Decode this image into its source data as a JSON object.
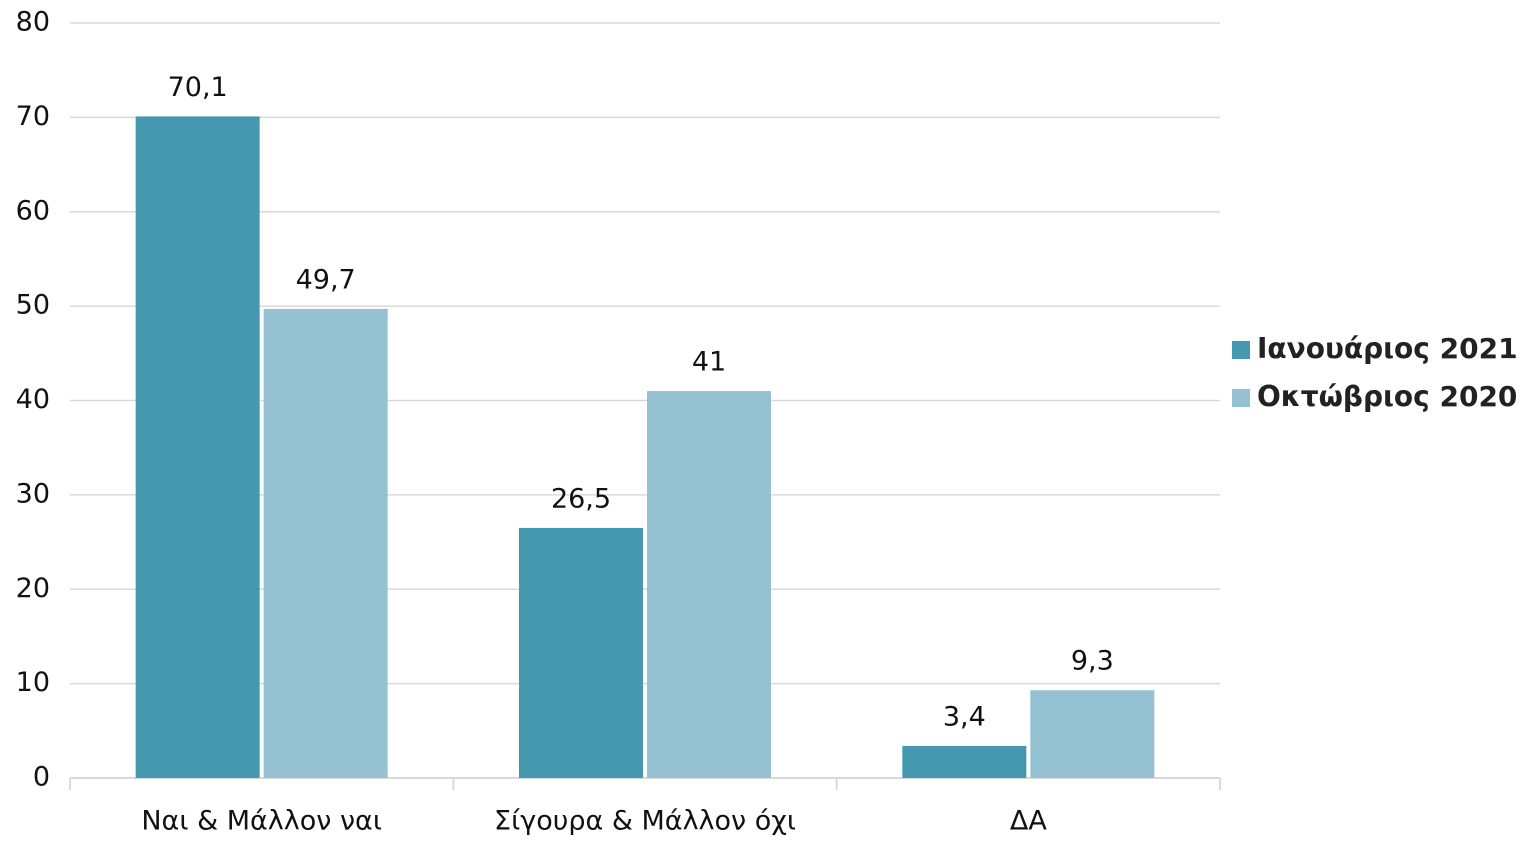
{
  "chart_data": {
    "type": "bar",
    "categories": [
      "Ναι & Μάλλον ναι",
      "Σίγουρα & Μάλλον όχι",
      "ΔΑ"
    ],
    "series": [
      {
        "name": "Ιανουάριος 2021",
        "color": "#4499b0",
        "values": [
          70.1,
          26.5,
          3.4
        ],
        "value_labels": [
          "70,1",
          "26,5",
          "3,4"
        ]
      },
      {
        "name": "Οκτώβριος 2020",
        "color": "#94c2d3",
        "values": [
          49.7,
          41,
          9.3
        ],
        "value_labels": [
          "49,7",
          "41",
          "9,3"
        ]
      }
    ],
    "ylim": [
      0,
      80
    ],
    "yticks": [
      0,
      10,
      20,
      30,
      40,
      50,
      60,
      70,
      80
    ],
    "grid": true,
    "legend": "right"
  }
}
